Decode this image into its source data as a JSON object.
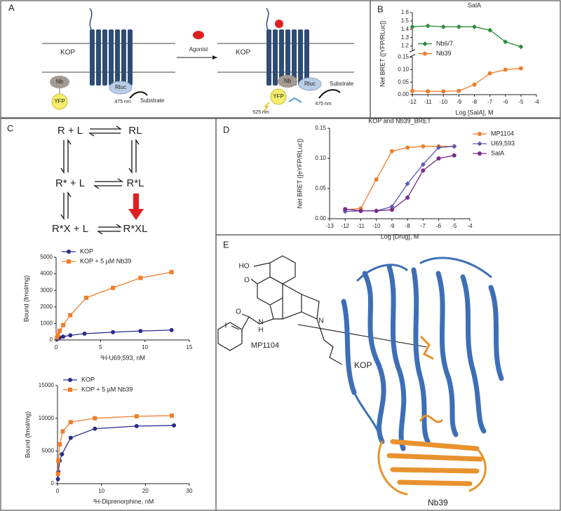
{
  "panels": {
    "A": {
      "label": "A",
      "receptor_left": "KOP",
      "nb_left": "Nb",
      "yfp_left": "YFP",
      "rluc_left": "Rluc",
      "wavelength_left": "475 nm",
      "substrate_left": "Substrate",
      "agonist": "Agonist",
      "receptor_right": "KOP",
      "nb_right": "Nb",
      "rluc_right": "Rluc",
      "yfp_right": "YFP",
      "substrate_right": "Substrate",
      "wavelength_yfp": "525 nm",
      "wavelength_rluc": "475 nm"
    },
    "B": {
      "label": "B"
    },
    "C": {
      "label": "C",
      "scheme": [
        "R + L",
        "RL",
        "R* + L",
        "R*L",
        "R*X + L",
        "R*XL"
      ]
    },
    "D": {
      "label": "D"
    },
    "E": {
      "label": "E",
      "atoms": [
        "HO",
        "O",
        "O",
        "N",
        "I",
        "N",
        "H"
      ],
      "ligand": "MP1104",
      "receptor": "KOP",
      "nanobody": "Nb39"
    }
  },
  "chart_data": [
    {
      "type": "line",
      "title": "SalA",
      "x_label": "Log [SalA], M",
      "y_label": "Net BRET ([YFP/RLuc])",
      "xlim": [
        -12,
        -4
      ],
      "xticks": [
        -12,
        -11,
        -10,
        -9,
        -8,
        -7,
        -6,
        -5,
        -4
      ],
      "ylim_segments": [
        [
          0,
          0.15
        ],
        [
          1.15,
          1.6
        ]
      ],
      "yticks": [
        {
          "value": 0,
          "label": "0.00"
        },
        0.05,
        {
          "value": 0.1,
          "label": "0.10"
        },
        {
          "value": 0.15,
          "label": "0.15"
        },
        1.2,
        1.3,
        1.4,
        1.5,
        1.6
      ],
      "legend": "center left",
      "series": [
        {
          "name": "Nb6/7",
          "color": "#2e8b3a",
          "marker": "diamond",
          "x": [
            -12,
            -11,
            -10,
            -9,
            -8,
            -7,
            -6,
            -5
          ],
          "values": [
            1.43,
            1.44,
            1.43,
            1.43,
            1.43,
            1.39,
            1.25,
            1.19
          ]
        },
        {
          "name": "Nb39",
          "color": "#f07d2a",
          "marker": "circle",
          "x": [
            -12,
            -11,
            -10,
            -9,
            -8,
            -7,
            -6,
            -5
          ],
          "values": [
            0.015,
            0.013,
            0.013,
            0.015,
            0.04,
            0.085,
            0.1,
            0.105
          ]
        }
      ]
    },
    {
      "type": "line",
      "x_label": "³H-U69,593, nM",
      "y_label": "Bound (fmol/mg)",
      "xlim": [
        0,
        15
      ],
      "xticks": [
        0,
        5,
        10,
        15
      ],
      "ylim": [
        0,
        5000
      ],
      "yticks": [
        0,
        1000,
        2000,
        3000,
        4000,
        5000
      ],
      "legend": "upper left",
      "series": [
        {
          "name": "KOP",
          "color": "#2b2b8c",
          "marker": "circle",
          "x": [
            0.1,
            0.2,
            0.4,
            0.8,
            1.6,
            3.2,
            6.4,
            9.5,
            13
          ],
          "values": [
            40,
            80,
            150,
            200,
            280,
            380,
            470,
            540,
            600
          ]
        },
        {
          "name": "KOP + 5 µM Nb39",
          "color": "#f07d2a",
          "marker": "square",
          "x": [
            0.1,
            0.2,
            0.4,
            0.8,
            1.6,
            3.4,
            6.4,
            9.5,
            13
          ],
          "values": [
            150,
            300,
            550,
            900,
            1500,
            2550,
            3150,
            3750,
            4100
          ]
        }
      ]
    },
    {
      "type": "line",
      "x_label": "³H-Diprenorphine, nM",
      "y_label": "Bound (fmol/mg)",
      "xlim": [
        0,
        30
      ],
      "xticks": [
        0,
        10,
        20,
        30
      ],
      "ylim": [
        0,
        15000
      ],
      "yticks": [
        0,
        5000,
        10000,
        15000
      ],
      "legend": "upper left",
      "series": [
        {
          "name": "KOP",
          "color": "#2b2b8c",
          "marker": "circle",
          "x": [
            0.1,
            0.2,
            0.5,
            1,
            3,
            8.5,
            18,
            26.5
          ],
          "values": [
            700,
            1800,
            3500,
            4500,
            7000,
            8400,
            8800,
            8900
          ]
        },
        {
          "name": "KOP + 5  µM Nb39",
          "color": "#f07d2a",
          "marker": "square",
          "x": [
            0.1,
            0.2,
            0.5,
            1.2,
            3,
            8.5,
            18,
            26
          ],
          "values": [
            1500,
            3500,
            6000,
            8000,
            9400,
            10000,
            10300,
            10400
          ]
        }
      ]
    },
    {
      "type": "line",
      "title": "KOP and Nb39_BRET",
      "x_label": "Log [Drug], M",
      "y_label": "Net BRET ([eYFP/RLuc])",
      "xlim": [
        -13,
        -4
      ],
      "xticks": [
        -13,
        -12,
        -11,
        -10,
        -9,
        -8,
        -7,
        -6,
        -5,
        -4
      ],
      "ylim": [
        0,
        0.15
      ],
      "yticks": [
        {
          "value": 0,
          "label": "0.00"
        },
        0.05,
        {
          "value": 0.1,
          "label": "0.10"
        },
        {
          "value": 0.15,
          "label": "0.15"
        }
      ],
      "legend": "outside right",
      "series": [
        {
          "name": "MP1104",
          "color": "#f07d2a",
          "marker": "circle",
          "x": [
            -12,
            -11,
            -10,
            -9,
            -8,
            -7,
            -6,
            -5
          ],
          "values": [
            0.015,
            0.017,
            0.065,
            0.112,
            0.118,
            0.12,
            0.12,
            0.12
          ]
        },
        {
          "name": "U69,593",
          "color": "#5a5ab8",
          "marker": "diamond",
          "x": [
            -12,
            -11,
            -10,
            -9,
            -8,
            -7,
            -6,
            -5
          ],
          "values": [
            0.012,
            0.013,
            0.013,
            0.02,
            0.058,
            0.09,
            0.118,
            0.12
          ]
        },
        {
          "name": "SalA",
          "color": "#7a2a8c",
          "marker": "circle",
          "x": [
            -12,
            -11,
            -10,
            -9,
            -8,
            -7,
            -6,
            -5
          ],
          "values": [
            0.016,
            0.013,
            0.013,
            0.015,
            0.035,
            0.08,
            0.1,
            0.105
          ]
        }
      ]
    }
  ]
}
